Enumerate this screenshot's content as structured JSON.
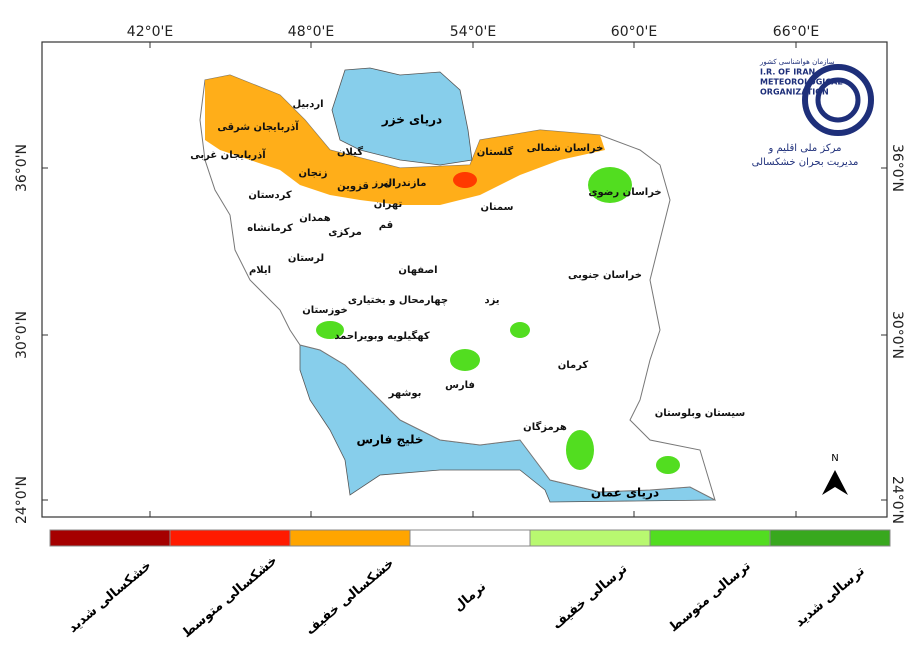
{
  "map": {
    "lon_labels": [
      "42°0'E",
      "48°0'E",
      "54°0'E",
      "60°0'E",
      "66°0'E"
    ],
    "lat_labels": [
      "36°0'N",
      "30°0'N",
      "24°0'N"
    ],
    "seas": [
      "دریای خزر",
      "خلیج فارس",
      "دریای عمان"
    ],
    "provinces": [
      "اردبیل",
      "آذربایجان شرقی",
      "آذربایجان غربی",
      "گیلان",
      "زنجان",
      "مازندران",
      "البرز",
      "قزوین",
      "گلستان",
      "خراسان شمالی",
      "خراسان رضوی",
      "سمنان",
      "تهران",
      "قم",
      "کردستان",
      "همدان",
      "کرمانشاه",
      "مرکزی",
      "لرستان",
      "ایلام",
      "اصفهان",
      "خراسان جنوبی",
      "خوزستان",
      "چهارمحال و بختیاری",
      "یزد",
      "کهگیلویه وبویراحمد",
      "فارس",
      "کرمان",
      "بوشهر",
      "هرمزگان",
      "سیستان وبلوستان"
    ],
    "north": "N",
    "logo": {
      "line1": "سازمان هواشناسی کشور",
      "line2": "I.R. OF IRAN",
      "line3": "METEOROLOGICAL",
      "line4": "ORGANIZATION",
      "caption1": "مرکز ملی اقلیم و",
      "caption2": "مدیریت بحران خشکسالی"
    }
  },
  "legend": [
    {
      "label": "خشکسالی شدید",
      "color": "#a50000"
    },
    {
      "label": "خشکسالی متوسط",
      "color": "#ff1a00"
    },
    {
      "label": "خشکسالی خفیف",
      "color": "#ffa500"
    },
    {
      "label": "نرمال",
      "color": "#ffffff"
    },
    {
      "label": "ترسالی خفیف",
      "color": "#b8f870"
    },
    {
      "label": "ترسالی متوسط",
      "color": "#52dd20"
    },
    {
      "label": "ترسالی شدید",
      "color": "#38a81e"
    }
  ]
}
